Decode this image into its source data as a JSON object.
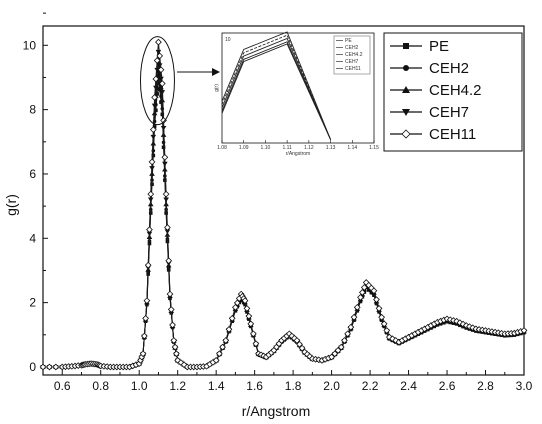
{
  "chart_data": {
    "type": "line",
    "xlabel": "r/Angstrom",
    "ylabel": "g(r)",
    "xlim": [
      0.5,
      3.0
    ],
    "ylim": [
      -0.25,
      10.6
    ],
    "x_ticks": [
      0.6,
      0.8,
      1.0,
      1.2,
      1.4,
      1.6,
      1.8,
      2.0,
      2.2,
      2.4,
      2.6,
      2.8,
      3.0
    ],
    "y_ticks": [
      0,
      2,
      4,
      6,
      8,
      10
    ],
    "x_tick_labels": [
      "0.6",
      "0.8",
      "1.0",
      "1.2",
      "1.4",
      "1.6",
      "1.8",
      "2.0",
      "2.2",
      "2.4",
      "2.6",
      "2.8",
      "3.0"
    ],
    "y_tick_labels": [
      "0",
      "2",
      "4",
      "6",
      "8",
      "10"
    ],
    "legend_position": "top-right",
    "series": [
      {
        "name": "PE",
        "marker": "filled-square",
        "peak": 9.0
      },
      {
        "name": "CEH2",
        "marker": "filled-circle",
        "peak": 9.2
      },
      {
        "name": "CEH4.2",
        "marker": "filled-triangle-up",
        "peak": 9.5
      },
      {
        "name": "CEH7",
        "marker": "filled-triangle-down",
        "peak": 9.8
      },
      {
        "name": "CEH11",
        "marker": "open-diamond",
        "peak": 10.1
      }
    ],
    "x": [
      0.5,
      0.6,
      0.65,
      0.7,
      0.72,
      0.75,
      0.78,
      0.8,
      0.85,
      0.9,
      0.95,
      1.0,
      1.02,
      1.04,
      1.06,
      1.08,
      1.1,
      1.12,
      1.14,
      1.16,
      1.18,
      1.2,
      1.25,
      1.3,
      1.35,
      1.4,
      1.45,
      1.5,
      1.53,
      1.55,
      1.58,
      1.62,
      1.66,
      1.7,
      1.74,
      1.78,
      1.82,
      1.86,
      1.9,
      1.95,
      2.0,
      2.05,
      2.1,
      2.15,
      2.18,
      2.22,
      2.26,
      2.3,
      2.35,
      2.4,
      2.45,
      2.5,
      2.55,
      2.6,
      2.65,
      2.7,
      2.75,
      2.8,
      2.85,
      2.9,
      2.95,
      3.0
    ],
    "y_shape": [
      0.0,
      0.0,
      0.02,
      0.05,
      0.08,
      0.1,
      0.08,
      0.03,
      0.0,
      0.0,
      0.0,
      0.1,
      0.4,
      2.0,
      5.0,
      7.8,
      9.4,
      8.2,
      5.0,
      2.2,
      0.8,
      0.2,
      0.0,
      0.0,
      0.02,
      0.2,
      0.8,
      1.8,
      2.2,
      2.0,
      1.3,
      0.4,
      0.3,
      0.5,
      0.8,
      1.0,
      0.8,
      0.45,
      0.25,
      0.2,
      0.3,
      0.6,
      1.2,
      2.1,
      2.55,
      2.3,
      1.5,
      0.9,
      0.75,
      0.9,
      1.05,
      1.2,
      1.35,
      1.45,
      1.38,
      1.25,
      1.15,
      1.1,
      1.05,
      1.0,
      1.02,
      1.1
    ],
    "inset": {
      "xlim": [
        1.08,
        1.15
      ],
      "ylim": [
        0,
        10
      ],
      "x_tick_labels": [
        "1.08",
        "1.09",
        "1.10",
        "1.11",
        "1.12",
        "1.13",
        "1.14",
        "1.15"
      ],
      "xlabel": "r/Angstrom",
      "ylabel": "g(r)",
      "legend": [
        "PE",
        "CEH2",
        "CEH4.2",
        "CEH7",
        "CEH11"
      ]
    }
  },
  "colors": {
    "line": "#1a1a1a",
    "axis": "#111111",
    "background": "#ffffff"
  }
}
